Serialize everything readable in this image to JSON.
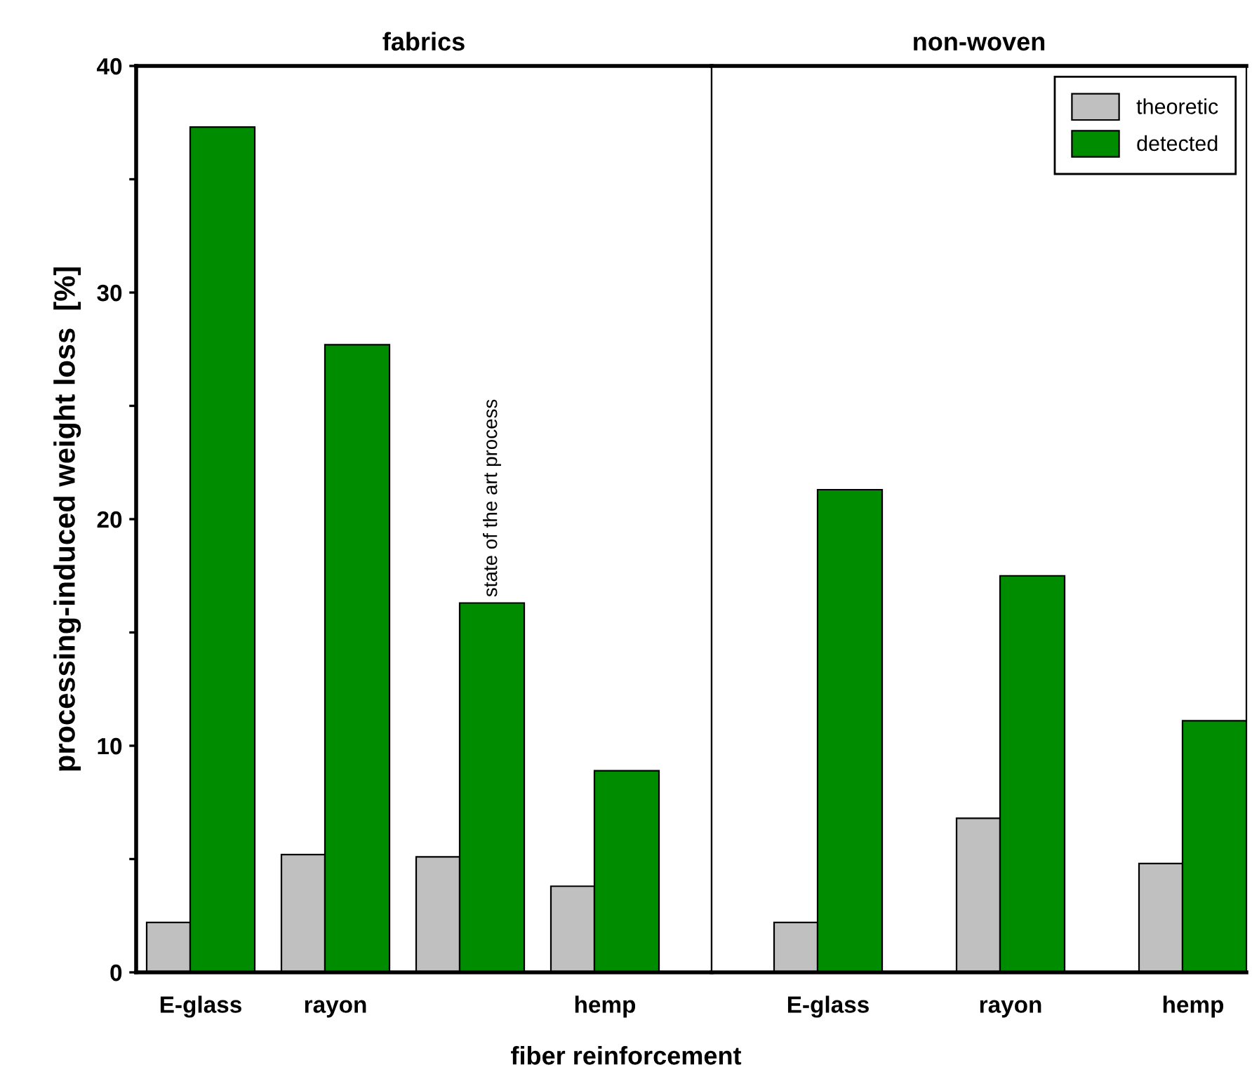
{
  "chart_data": [
    {
      "type": "bar",
      "title": "fabrics",
      "ylabel": "processing-induced weight loss  [%]",
      "xlabel": "fiber reinforcement",
      "categories": [
        "E-glass",
        "rayon",
        null,
        "hemp"
      ],
      "series": [
        {
          "color": "#c0c0c0",
          "values": [
            2.2,
            5.2,
            5.1,
            3.8
          ]
        },
        {
          "color": "#008c00",
          "values": [
            37.3,
            27.7,
            16.3,
            8.9
          ],
          "value_labels": [
            null,
            null,
            "state of the art process",
            null
          ]
        }
      ],
      "ylim": [
        0,
        40
      ],
      "yticks": [
        0,
        {
          "value": 5,
          "label": null
        },
        10,
        {
          "value": 15,
          "label": null
        },
        20,
        {
          "value": 25,
          "label": null
        },
        30,
        {
          "value": 35,
          "label": null
        },
        40
      ],
      "grid": false
    },
    {
      "type": "bar",
      "title": "non-woven",
      "categories": [
        "E-glass",
        "rayon",
        "hemp"
      ],
      "series": [
        {
          "name": "theoretic",
          "color": "#c0c0c0",
          "values": [
            2.2,
            6.8,
            4.8
          ]
        },
        {
          "name": "detected",
          "color": "#008c00",
          "values": [
            21.3,
            17.5,
            11.1
          ]
        }
      ],
      "ylim": [
        0,
        40
      ],
      "tick_labels": "x",
      "grid": false,
      "legend": "top right"
    }
  ]
}
